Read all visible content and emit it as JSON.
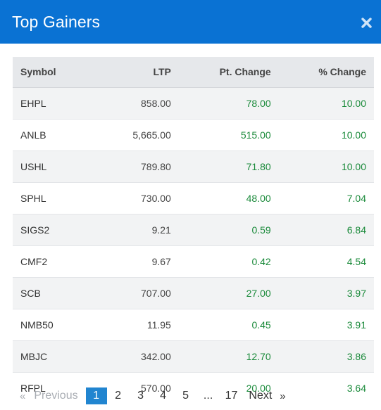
{
  "modal": {
    "title": "Top Gainers"
  },
  "icons": {
    "close": "close-icon"
  },
  "colors": {
    "header_bg": "#0a72d3",
    "positive": "#1a8a3a",
    "active_page": "#2185d0"
  },
  "table": {
    "headers": [
      "Symbol",
      "LTP",
      "Pt. Change",
      "% Change"
    ],
    "rows": [
      {
        "symbol": "EHPL",
        "ltp": "858.00",
        "pt_change": "78.00",
        "pct_change": "10.00"
      },
      {
        "symbol": "ANLB",
        "ltp": "5,665.00",
        "pt_change": "515.00",
        "pct_change": "10.00"
      },
      {
        "symbol": "USHL",
        "ltp": "789.80",
        "pt_change": "71.80",
        "pct_change": "10.00"
      },
      {
        "symbol": "SPHL",
        "ltp": "730.00",
        "pt_change": "48.00",
        "pct_change": "7.04"
      },
      {
        "symbol": "SIGS2",
        "ltp": "9.21",
        "pt_change": "0.59",
        "pct_change": "6.84"
      },
      {
        "symbol": "CMF2",
        "ltp": "9.67",
        "pt_change": "0.42",
        "pct_change": "4.54"
      },
      {
        "symbol": "SCB",
        "ltp": "707.00",
        "pt_change": "27.00",
        "pct_change": "3.97"
      },
      {
        "symbol": "NMB50",
        "ltp": "11.95",
        "pt_change": "0.45",
        "pct_change": "3.91"
      },
      {
        "symbol": "MBJC",
        "ltp": "342.00",
        "pt_change": "12.70",
        "pct_change": "3.86"
      },
      {
        "symbol": "RFPL",
        "ltp": "570.00",
        "pt_change": "20.00",
        "pct_change": "3.64"
      }
    ]
  },
  "pagination": {
    "prev_arrow": "«",
    "prev_label": "Previous",
    "pages": [
      "1",
      "2",
      "3",
      "4",
      "5",
      "...",
      "17"
    ],
    "active_page": "1",
    "next_label": "Next",
    "next_arrow": "»"
  }
}
